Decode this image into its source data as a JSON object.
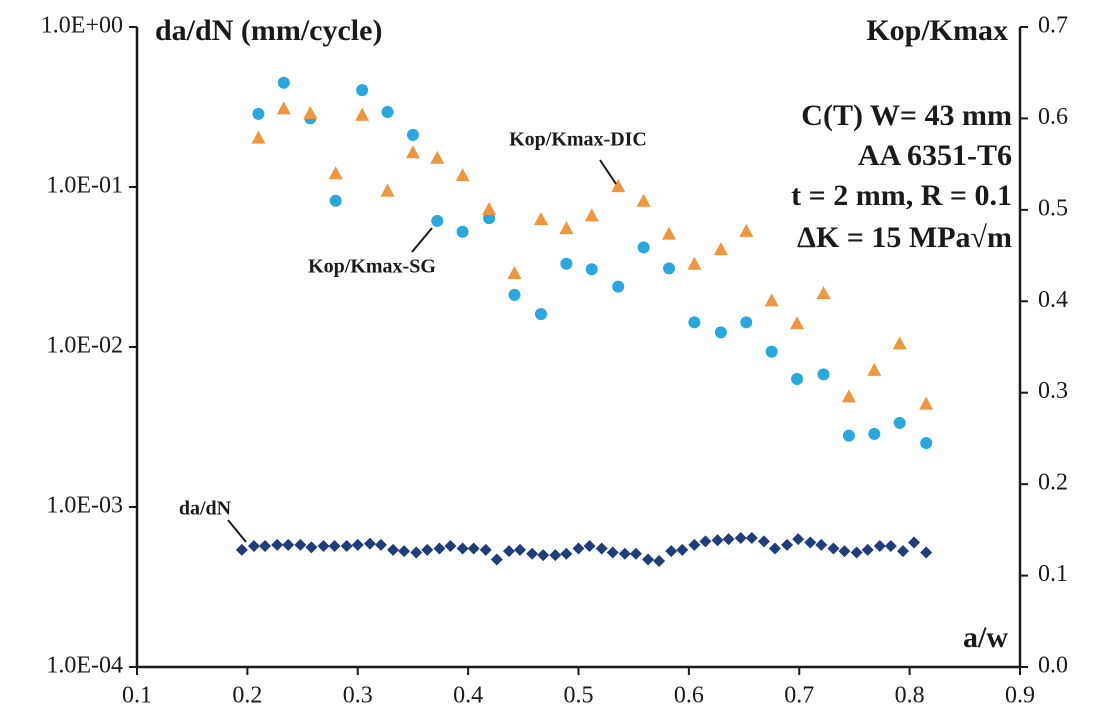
{
  "chart_data": {
    "type": "scatter",
    "ylog": true,
    "ylabel": "da/dN (mm/cycle)",
    "y2label": "Kop/Kmax",
    "xlabel": "a/w",
    "annotations": [
      "C(T) W= 43 mm",
      "AA 6351-T6",
      "t = 2 mm, R = 0.1",
      "ΔK = 15 MPa√m"
    ],
    "xlim": [
      0.1,
      0.9
    ],
    "xticks": [
      0.1,
      0.2,
      0.3,
      0.4,
      0.5,
      0.6,
      0.7,
      0.8,
      0.9
    ],
    "ylim": [
      0.0001,
      1
    ],
    "yticks": [
      {
        "value": 0.0001,
        "label": "1.0E-04"
      },
      {
        "value": 0.001,
        "label": "1.0E-03"
      },
      {
        "value": 0.01,
        "label": "1.0E-02"
      },
      {
        "value": 0.1,
        "label": "1.0E-01"
      },
      {
        "value": 1,
        "label": "1.0E+00"
      }
    ],
    "y2lim": [
      0,
      0.7
    ],
    "y2ticks": [
      {
        "value": 0,
        "label": "0.0"
      },
      0.1,
      0.2,
      0.3,
      0.4,
      0.5,
      0.6,
      0.7
    ],
    "series": [
      {
        "name": "da/dN",
        "color": "#1f3d7c",
        "marker": "diamond",
        "axis": "y",
        "x": [
          0.195,
          0.206,
          0.216,
          0.227,
          0.237,
          0.248,
          0.258,
          0.269,
          0.279,
          0.29,
          0.3,
          0.311,
          0.321,
          0.332,
          0.342,
          0.353,
          0.363,
          0.374,
          0.384,
          0.395,
          0.405,
          0.416,
          0.426,
          0.437,
          0.447,
          0.458,
          0.468,
          0.479,
          0.489,
          0.5,
          0.51,
          0.521,
          0.531,
          0.542,
          0.552,
          0.563,
          0.573,
          0.584,
          0.594,
          0.605,
          0.615,
          0.626,
          0.636,
          0.647,
          0.657,
          0.668,
          0.678,
          0.689,
          0.699,
          0.71,
          0.72,
          0.731,
          0.741,
          0.752,
          0.762,
          0.773,
          0.783,
          0.794,
          0.804,
          0.815
        ],
        "values": [
          0.00054,
          0.00057,
          0.00057,
          0.00058,
          0.00058,
          0.00058,
          0.00056,
          0.00057,
          0.00057,
          0.00057,
          0.00058,
          0.00059,
          0.00058,
          0.00054,
          0.00053,
          0.00052,
          0.00054,
          0.00055,
          0.00057,
          0.00055,
          0.00055,
          0.00054,
          0.00047,
          0.00053,
          0.00054,
          0.00051,
          0.0005,
          0.0005,
          0.00051,
          0.00055,
          0.00057,
          0.00055,
          0.00052,
          0.00051,
          0.00051,
          0.00047,
          0.00046,
          0.00053,
          0.00054,
          0.00058,
          0.00061,
          0.00062,
          0.00063,
          0.00064,
          0.00064,
          0.00061,
          0.00055,
          0.00058,
          0.00063,
          0.0006,
          0.00058,
          0.00055,
          0.00053,
          0.00052,
          0.00054,
          0.00057,
          0.00057,
          0.00053,
          0.0006,
          0.00052
        ]
      },
      {
        "name": "Kop/Kmax-SG",
        "color": "#29a8e0",
        "marker": "circle",
        "axis": "y2",
        "x": [
          0.21,
          0.233,
          0.257,
          0.28,
          0.304,
          0.327,
          0.35,
          0.372,
          0.395,
          0.419,
          0.442,
          0.466,
          0.489,
          0.512,
          0.536,
          0.559,
          0.582,
          0.605,
          0.629,
          0.652,
          0.675,
          0.698,
          0.722,
          0.745,
          0.768,
          0.791,
          0.815
        ],
        "values": [
          0.605,
          0.639,
          0.6,
          0.51,
          0.631,
          0.607,
          0.582,
          0.488,
          0.476,
          0.491,
          0.407,
          0.386,
          0.441,
          0.435,
          0.416,
          0.459,
          0.436,
          0.377,
          0.366,
          0.377,
          0.345,
          0.315,
          0.32,
          0.253,
          0.255,
          0.267,
          0.245
        ]
      },
      {
        "name": "Kop/Kmax-DIC",
        "color": "#f0963c",
        "marker": "triangle",
        "axis": "y2",
        "x": [
          0.21,
          0.233,
          0.257,
          0.28,
          0.304,
          0.327,
          0.35,
          0.372,
          0.395,
          0.419,
          0.442,
          0.466,
          0.489,
          0.512,
          0.536,
          0.559,
          0.582,
          0.605,
          0.629,
          0.652,
          0.675,
          0.698,
          0.722,
          0.745,
          0.768,
          0.791,
          0.815
        ],
        "values": [
          0.579,
          0.611,
          0.606,
          0.54,
          0.604,
          0.521,
          0.563,
          0.557,
          0.538,
          0.501,
          0.431,
          0.49,
          0.48,
          0.494,
          0.526,
          0.51,
          0.474,
          0.441,
          0.457,
          0.477,
          0.401,
          0.376,
          0.409,
          0.296,
          0.325,
          0.354,
          0.288
        ]
      }
    ]
  }
}
